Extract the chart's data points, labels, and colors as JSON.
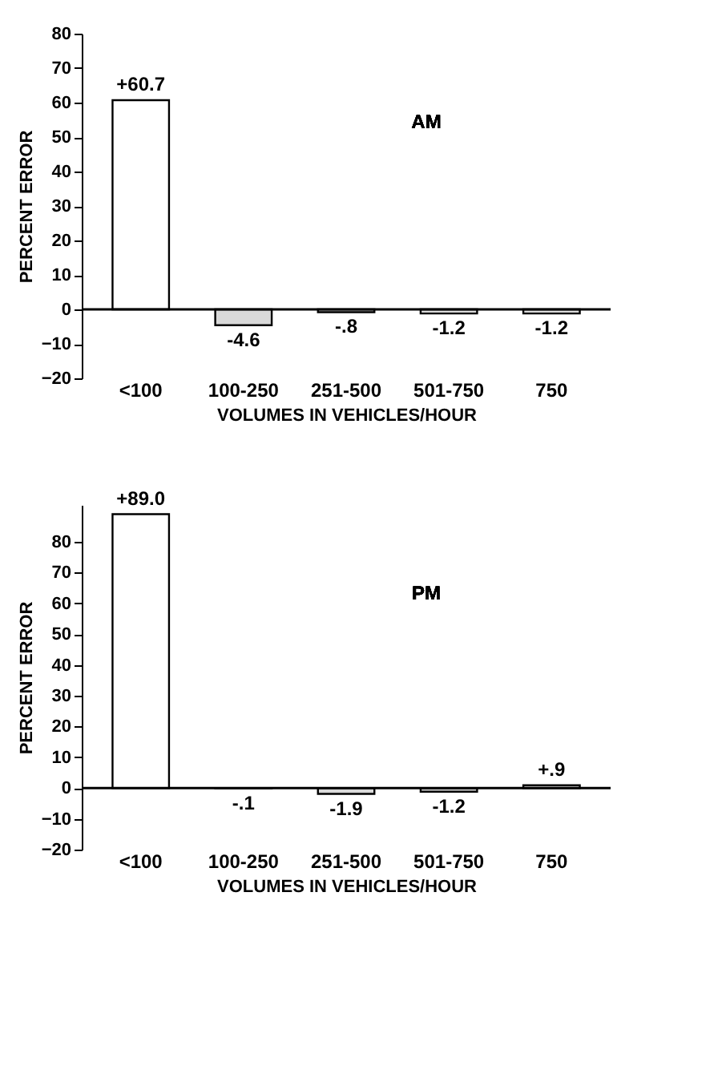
{
  "chart_data": [
    {
      "type": "bar",
      "title": "AM",
      "xlabel": "VOLUMES IN VEHICLES/HOUR",
      "ylabel": "PERCENT ERROR",
      "categories": [
        "<100",
        "100-250",
        "251-500",
        "501-750",
        "750"
      ],
      "values": [
        60.7,
        -4.6,
        -0.8,
        -1.2,
        -1.2
      ],
      "value_labels": [
        "+60.7",
        "-4.6",
        "-.8",
        "-1.2",
        "-1.2"
      ],
      "colors": [
        "#ffffff",
        "#d9d9d9",
        "#d9d9d9",
        "#d9d9d9",
        "#d9d9d9"
      ],
      "ylim": [
        -20,
        80
      ],
      "yticks": [
        -20,
        -10,
        0,
        10,
        20,
        30,
        40,
        50,
        60,
        70,
        80
      ],
      "ref_lines": [
        {
          "axis": "y",
          "value": 0
        }
      ]
    },
    {
      "type": "bar",
      "title": "PM",
      "xlabel": "VOLUMES IN VEHICLES/HOUR",
      "ylabel": "PERCENT ERROR",
      "categories": [
        "<100",
        "100-250",
        "251-500",
        "501-750",
        "750"
      ],
      "values": [
        89.0,
        -0.1,
        -1.9,
        -1.2,
        0.9
      ],
      "value_labels": [
        "+89.0",
        "-.1",
        "-1.9",
        "-1.2",
        "+.9"
      ],
      "colors": [
        "#ffffff",
        "#d9d9d9",
        "#d9d9d9",
        "#d9d9d9",
        "#d9d9d9"
      ],
      "ylim": [
        -20,
        92
      ],
      "yticks": [
        -20,
        -10,
        0,
        10,
        20,
        30,
        40,
        50,
        60,
        70,
        80
      ],
      "ref_lines": [
        {
          "axis": "y",
          "value": 0
        }
      ]
    }
  ]
}
